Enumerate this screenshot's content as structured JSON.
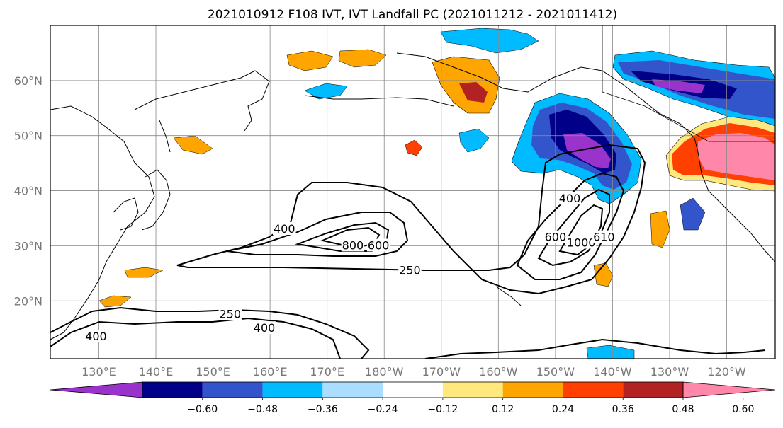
{
  "title": "2021010912 F108 IVT, IVT Landfall PC (2021011212 - 2021011412)",
  "map": {
    "lat_labels": [
      {
        "lat": 60,
        "label": "60°N"
      },
      {
        "lat": 50,
        "label": "50°N"
      },
      {
        "lat": 40,
        "label": "40°N"
      },
      {
        "lat": 30,
        "label": "30°N"
      },
      {
        "lat": 20,
        "label": "20°N"
      }
    ],
    "lon_labels": [
      {
        "lon": 130,
        "label": "130°E"
      },
      {
        "lon": 140,
        "label": "140°E"
      },
      {
        "lon": 150,
        "label": "150°E"
      },
      {
        "lon": 160,
        "label": "160°E"
      },
      {
        "lon": 170,
        "label": "170°E"
      },
      {
        "lon": 180,
        "label": "180°W"
      },
      {
        "lon": 190,
        "label": "170°W"
      },
      {
        "lon": 200,
        "label": "160°W"
      },
      {
        "lon": 210,
        "label": "150°W"
      },
      {
        "lon": 220,
        "label": "140°W"
      },
      {
        "lon": 230,
        "label": "130°W"
      },
      {
        "lon": 240,
        "label": "120°W"
      }
    ],
    "contour_labels": [
      {
        "text": "400",
        "lon": 162.5,
        "lat": 33.0
      },
      {
        "text": "800",
        "lon": 174.5,
        "lat": 30.0
      },
      {
        "text": "600",
        "lon": 179.0,
        "lat": 30.0
      },
      {
        "text": "250",
        "lon": 184.5,
        "lat": 25.5
      },
      {
        "text": "250",
        "lon": 153.0,
        "lat": 17.5
      },
      {
        "text": "400",
        "lon": 129.5,
        "lat": 13.5
      },
      {
        "text": "400",
        "lon": 159.0,
        "lat": 15.0
      },
      {
        "text": "600",
        "lon": 210.0,
        "lat": 31.5
      },
      {
        "text": "400",
        "lon": 212.5,
        "lat": 38.5
      },
      {
        "text": "1000",
        "lon": 214.5,
        "lat": 30.5
      },
      {
        "text": "610",
        "lon": 218.5,
        "lat": 31.5
      }
    ]
  },
  "colorbar": {
    "ticks": [
      "−0.60",
      "−0.48",
      "−0.36",
      "−0.24",
      "−0.12",
      "0.12",
      "0.24",
      "0.36",
      "0.48",
      "0.60"
    ],
    "colors": [
      "#9933cc",
      "#000088",
      "#3355cc",
      "#00bbff",
      "#aaddff",
      "#ffffff",
      "#ffe97f",
      "#ffa500",
      "#ff4000",
      "#b22222",
      "#ff88aa"
    ]
  }
}
